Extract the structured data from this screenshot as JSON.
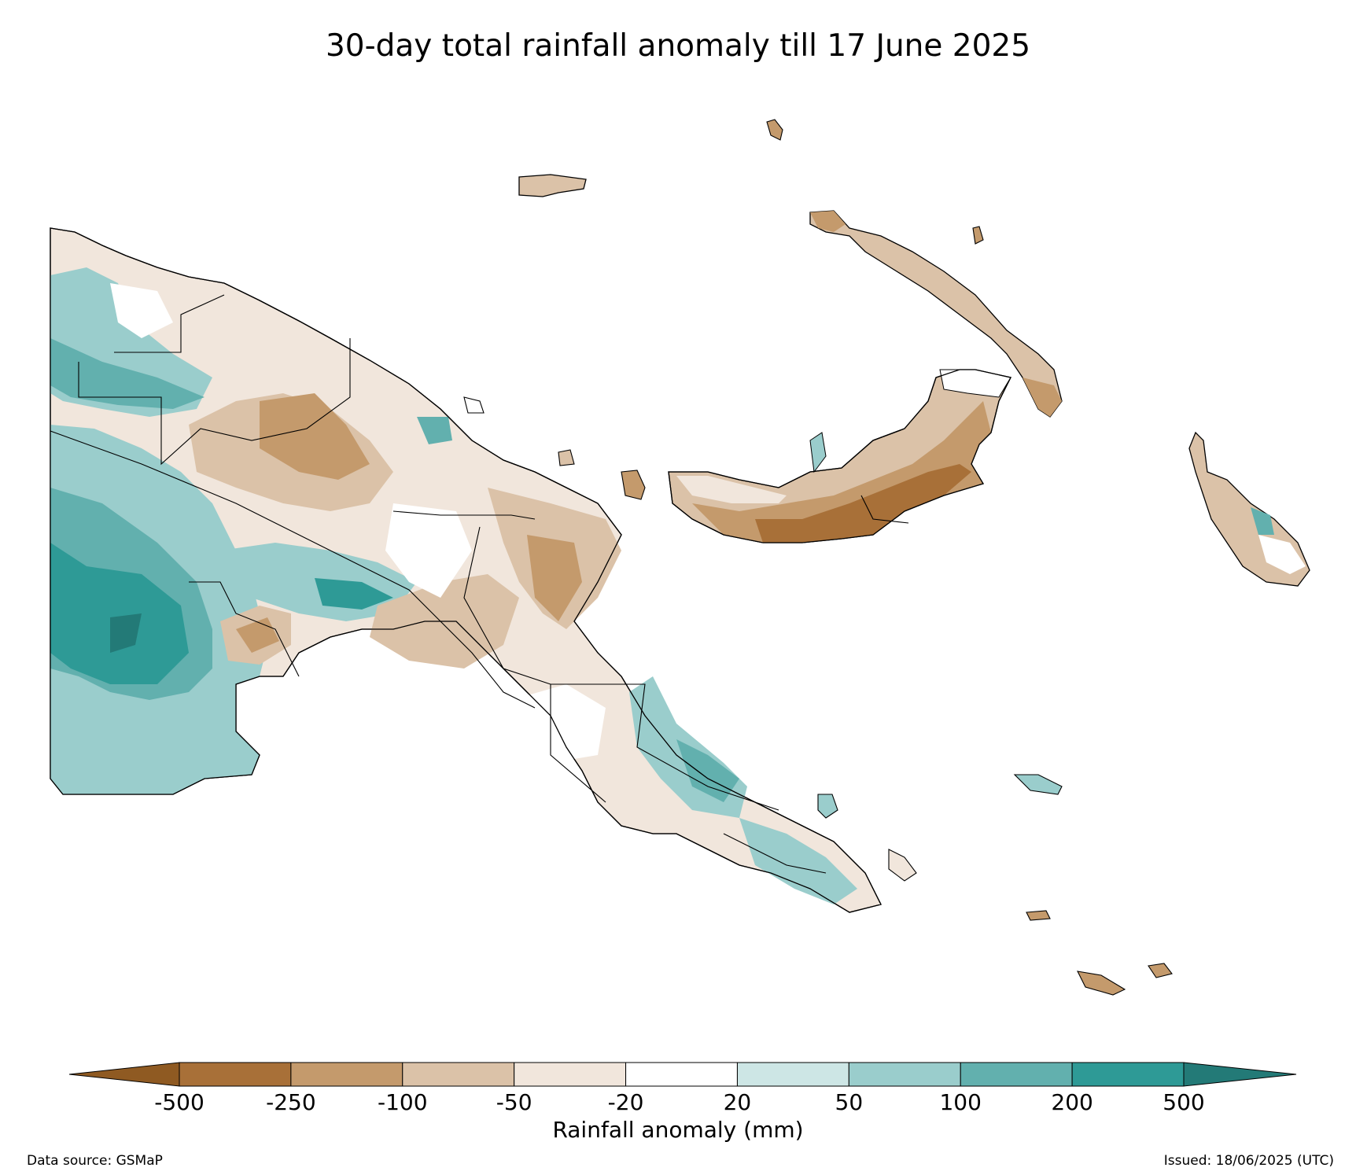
{
  "title": "30-day total rainfall anomaly till 17 June 2025",
  "colorbar": {
    "label": "Rainfall anomaly (mm)",
    "ticks": [
      "-500",
      "-250",
      "-100",
      "-50",
      "-20",
      "20",
      "50",
      "100",
      "200",
      "500"
    ],
    "colors": {
      "lt_-500": "#8f5a22",
      "-500_-250": "#a87038",
      "-250_-100": "#c49a6c",
      "-100_-50": "#dbc2a8",
      "-50_-20": "#f1e6dc",
      "-20_20": "#ffffff",
      "20_50": "#cde6e5",
      "50_100": "#9acdcc",
      "100_200": "#62b0ae",
      "200_500": "#2e9a96",
      "gt_500": "#237a77"
    }
  },
  "footer": {
    "source": "Data source: GSMaP",
    "issued": "Issued: 18/06/2025 (UTC)"
  }
}
